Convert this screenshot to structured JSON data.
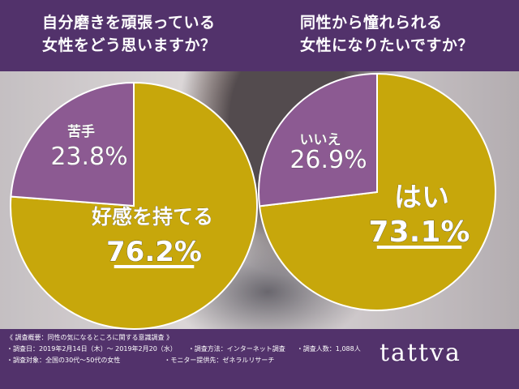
{
  "chart_data": [
    {
      "type": "pie",
      "title": "自分磨きを頑張っている\n女性をどう思いますか？",
      "slices": [
        {
          "label": "好感を持てる",
          "value": 76.2,
          "display": "76.2%",
          "color": "#c7a70b"
        },
        {
          "label": "苦手",
          "value": 23.8,
          "display": "23.8%",
          "color": "#8c5a92"
        }
      ]
    },
    {
      "type": "pie",
      "title": "同性から憧れられる\n女性になりたいですか？",
      "slices": [
        {
          "label": "はい",
          "value": 73.1,
          "display": "73.1%",
          "color": "#c7a70b"
        },
        {
          "label": "いいえ",
          "value": 26.9,
          "display": "26.9%",
          "color": "#8c5a92"
        }
      ]
    }
  ],
  "survey": {
    "heading": "《 調査概要：同性の気になるところに関する意識調査 》",
    "date": "・調査日：2019年2月14日（木）～ 2019年2月20（水）",
    "method": "・調査方法：インターネット調査",
    "people": "・調査人数：1,088人",
    "target": "・調査対象：全国の30代～50代の女性",
    "provider": "・モニター提供先：ゼネラルリサーチ"
  },
  "brand": {
    "logo": "tattva"
  },
  "colors": {
    "band": "#52326b",
    "major": "#c7a70b",
    "minor": "#8c5a92"
  }
}
